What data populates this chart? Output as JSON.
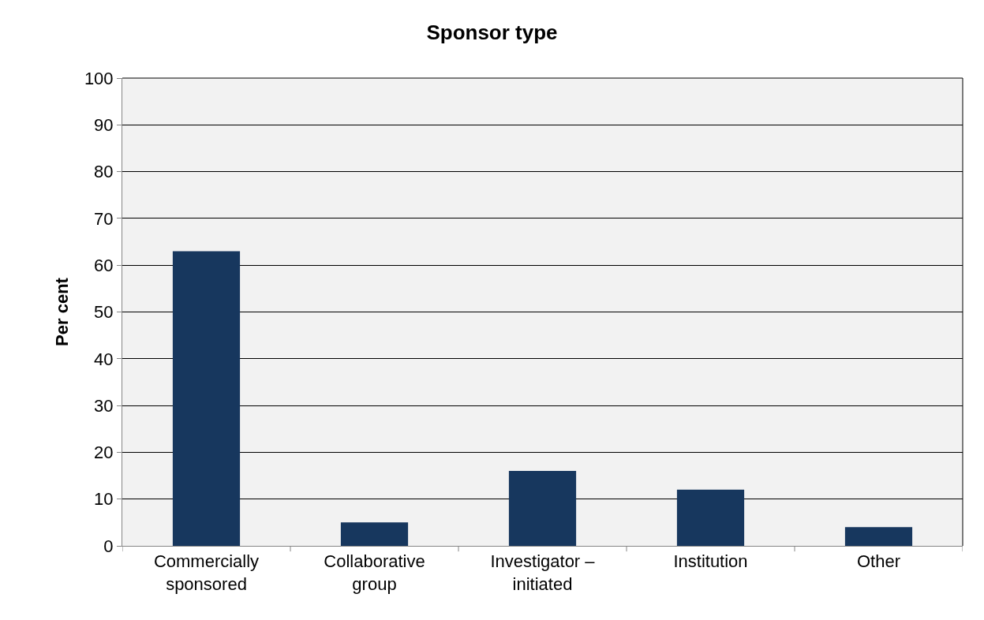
{
  "chart_data": {
    "type": "bar",
    "title": "Sponsor type",
    "ylabel": "Per cent",
    "categories": [
      "Commercially sponsored",
      "Collaborative group",
      "Investigator – initiated",
      "Institution",
      "Other"
    ],
    "values": [
      63,
      5,
      16,
      12,
      4
    ],
    "color": "#17375e",
    "ylim": [
      0,
      100
    ],
    "yticks": [
      0,
      10,
      20,
      30,
      40,
      50,
      60,
      70,
      80,
      90,
      100
    ],
    "grid": "y"
  }
}
